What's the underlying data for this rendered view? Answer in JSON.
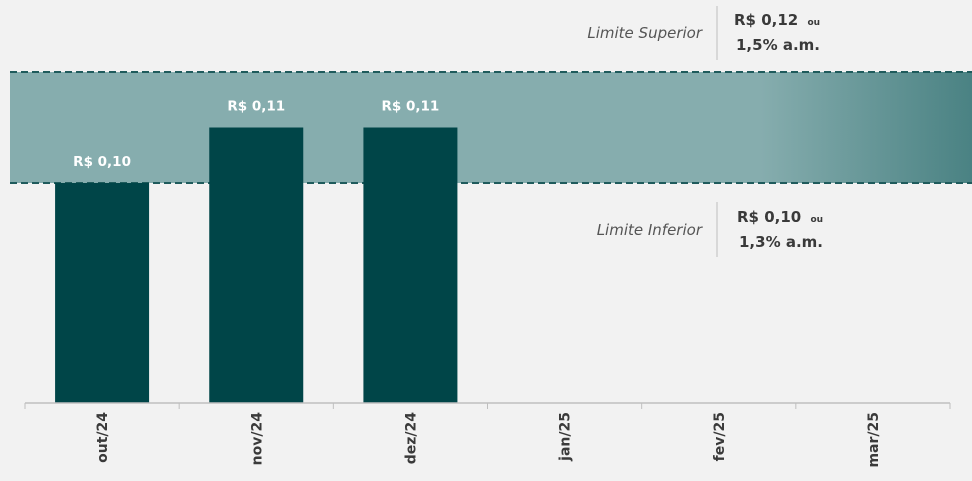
{
  "chart_data": {
    "type": "bar",
    "categories": [
      "out/24",
      "nov/24",
      "dez/24",
      "jan/25",
      "fev/25",
      "mar/25"
    ],
    "values": [
      0.1,
      0.11,
      0.11,
      null,
      null,
      null
    ],
    "data_labels": [
      "R$ 0,10",
      "R$ 0,11",
      "R$ 0,11",
      "",
      "",
      ""
    ],
    "band": {
      "lower": 0.1,
      "upper": 0.12
    },
    "ylim": [
      0,
      0.12
    ],
    "grid": false,
    "annotations": {
      "upper": {
        "label": "Limite Superior",
        "value": "R$ 0,12",
        "connector": "ou",
        "rate": "1,5% a.m."
      },
      "lower": {
        "label": "Limite Inferior",
        "value": "R$ 0,10",
        "connector": "ou",
        "rate": "1,3% a.m."
      }
    },
    "colors": {
      "bar": "#004548",
      "band_light": "#86adae",
      "band_dark": "#4a8283",
      "band_edge": "#1f5b5c",
      "axis": "#bfbfbf",
      "background": "#f2f2f2"
    }
  }
}
